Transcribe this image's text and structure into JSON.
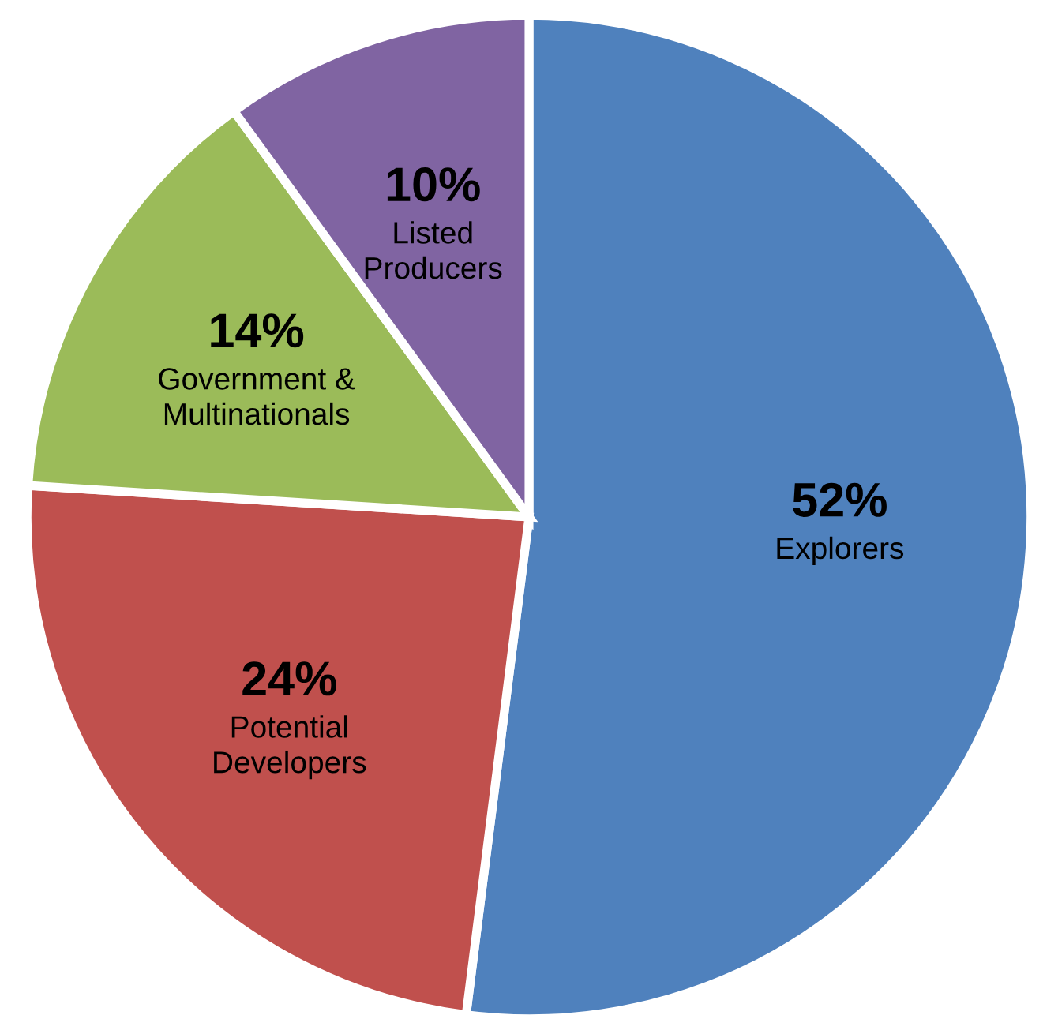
{
  "chart_data": {
    "type": "pie",
    "categories": [
      "Explorers",
      "Potential\nDevelopers",
      "Government &\nMultinationals",
      "Listed\nProducers"
    ],
    "values": [
      52,
      24,
      14,
      10
    ],
    "value_labels": [
      "52%",
      "24%",
      "14%",
      "10%"
    ],
    "colors": [
      "#4f81bd",
      "#c0504d",
      "#9bbb59",
      "#8064a2"
    ],
    "legend": false
  }
}
